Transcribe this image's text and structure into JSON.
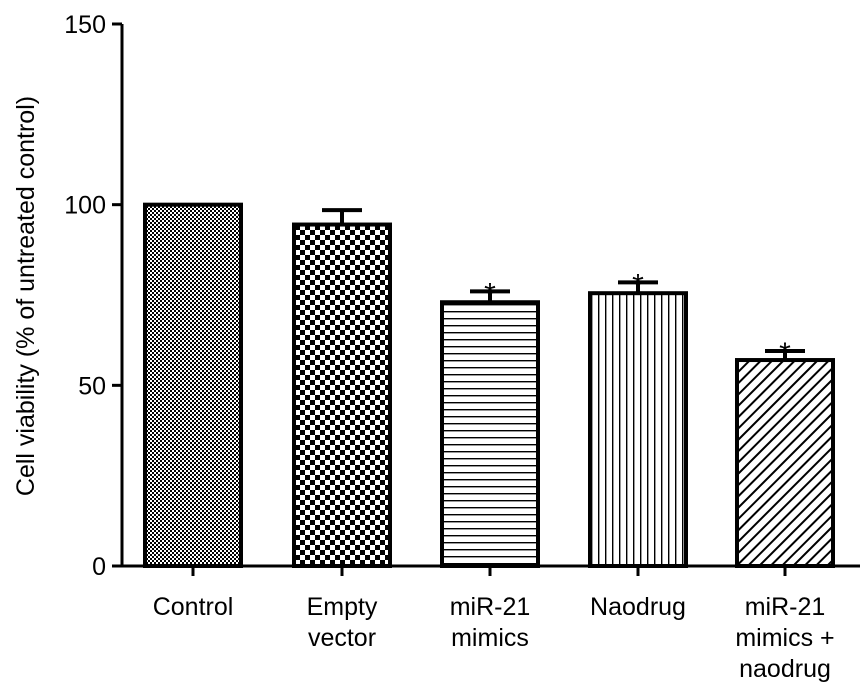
{
  "chart_data": {
    "type": "bar",
    "title": "",
    "xlabel": "",
    "ylabel": "Cell viability (% of untreated control)",
    "ylim": [
      0,
      150
    ],
    "yticks": [
      0,
      50,
      100,
      150
    ],
    "grid": false,
    "legend": "none",
    "categories": [
      [
        "Control"
      ],
      [
        "Empty",
        "vector"
      ],
      [
        "miR-21",
        "mimics"
      ],
      [
        "Naodrug"
      ],
      [
        "miR-21",
        "mimics +",
        "naodrug"
      ]
    ],
    "values": [
      100,
      94.5,
      73,
      75.5,
      57
    ],
    "error": [
      0,
      4,
      3,
      3,
      2.5
    ],
    "significance": [
      "",
      "",
      "*",
      "*",
      "*"
    ],
    "patterns": [
      "fine-dots",
      "checker",
      "horizontal-lines",
      "vertical-lines",
      "diagonal-lines"
    ],
    "colors": {
      "bar_outline": "#000000",
      "bar_fill": "#ffffff",
      "axis": "#000000"
    }
  }
}
